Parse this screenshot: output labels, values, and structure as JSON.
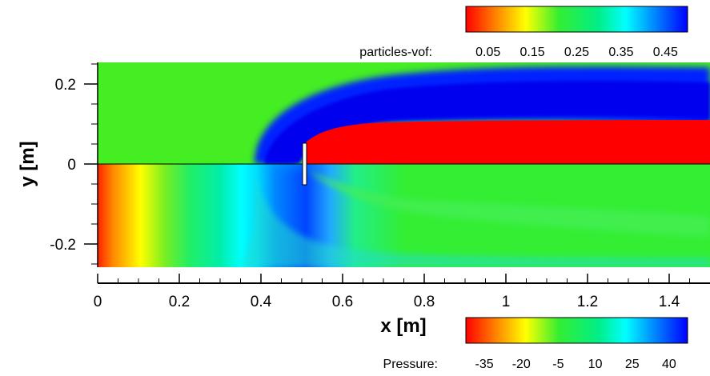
{
  "chart_data": {
    "type": "heatmap",
    "xlabel": "x [m]",
    "ylabel": "y [m]",
    "xlim": [
      0,
      1.5
    ],
    "ylim": [
      -0.25,
      0.25
    ],
    "xticks": [
      "0",
      "0.2",
      "0.4",
      "0.6",
      "0.8",
      "1",
      "1.2",
      "1.4"
    ],
    "xtick_values": [
      0,
      0.2,
      0.4,
      0.6,
      0.8,
      1.0,
      1.2,
      1.4
    ],
    "yticks": [
      "0.2",
      "0",
      "-0.2"
    ],
    "ytick_values": [
      0.2,
      0,
      -0.2
    ],
    "plate": {
      "x": 0.5,
      "y_range": [
        -0.05,
        0.05
      ]
    },
    "panels": [
      {
        "name": "particles-vof",
        "region": "upper half (y > 0)",
        "colorbar": {
          "title": "particles-vof:",
          "ticks": [
            "0.05",
            "0.15",
            "0.25",
            "0.35",
            "0.45"
          ],
          "range": [
            0,
            0.5
          ],
          "colormap": [
            "#ff0000",
            "#ff8800",
            "#ffff00",
            "#33ee33",
            "#00ee88",
            "#00ffff",
            "#0088ff",
            "#0000ff"
          ]
        },
        "field_summary": [
          {
            "zone": "ambient",
            "value": 0.25
          },
          {
            "zone": "wake core (x>0.5, 0<y<0.1)",
            "value": 0.0
          },
          {
            "zone": "shear layer band",
            "value": 0.47
          }
        ]
      },
      {
        "name": "Pressure",
        "region": "lower half (y < 0)",
        "colorbar": {
          "title": "Pressure:",
          "ticks": [
            "-35",
            "-20",
            "-5",
            "10",
            "25",
            "40"
          ],
          "range": [
            -42.5,
            47.5
          ],
          "colormap": [
            "#ff0000",
            "#ff8800",
            "#ffff00",
            "#33ee33",
            "#00ee88",
            "#00ffff",
            "#0088ff",
            "#0000ff"
          ]
        },
        "field_summary": [
          {
            "zone": "inlet (x≈0)",
            "value": -40
          },
          {
            "zone": "far field",
            "value": 2.5
          },
          {
            "zone": "upstream of plate",
            "value": 40
          }
        ]
      }
    ]
  }
}
